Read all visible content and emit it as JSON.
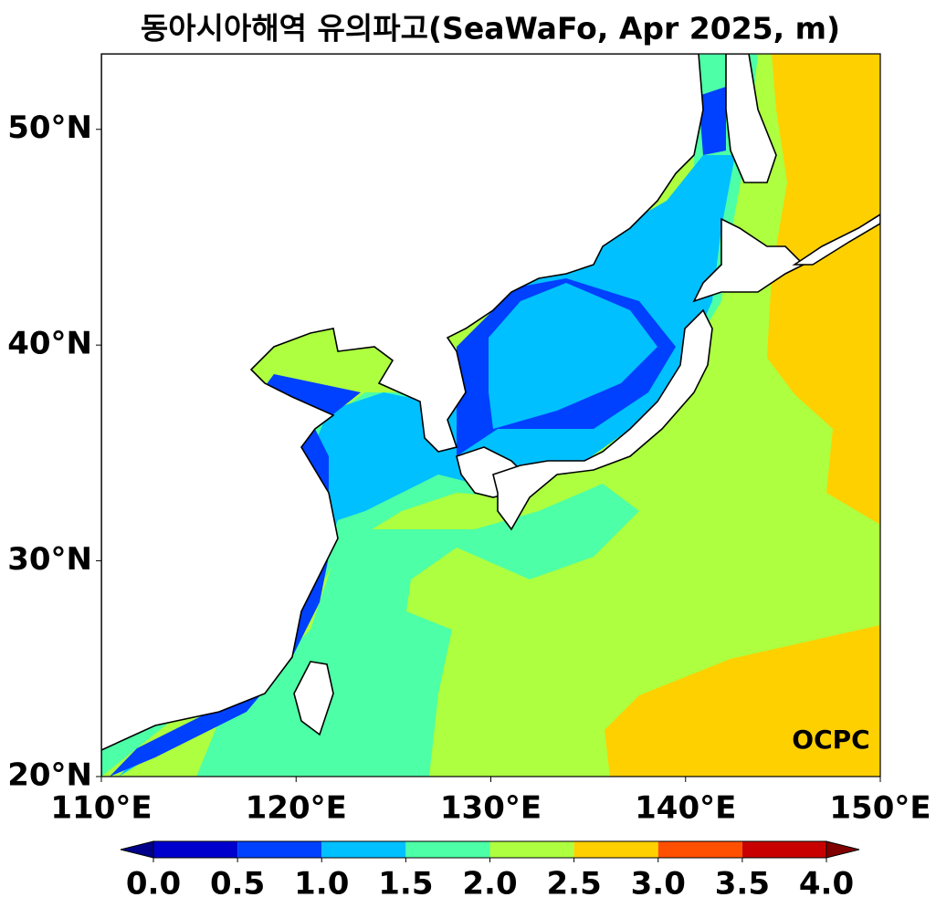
{
  "chart_data": {
    "type": "contour-map",
    "title": "동아시아해역 유의파고(SeaWaFo, Apr 2025, m)",
    "xlim": [
      110,
      150
    ],
    "ylim": [
      20,
      53.5
    ],
    "xticks": [
      {
        "value": 110,
        "label": "110°E"
      },
      {
        "value": 120,
        "label": "120°E"
      },
      {
        "value": 130,
        "label": "130°E"
      },
      {
        "value": 140,
        "label": "140°E"
      },
      {
        "value": 150,
        "label": "150°E"
      }
    ],
    "yticks": [
      {
        "value": 20,
        "label": "20°N"
      },
      {
        "value": 30,
        "label": "30°N"
      },
      {
        "value": 40,
        "label": "40°N"
      },
      {
        "value": 50,
        "label": "50°N"
      }
    ],
    "colorbar": {
      "levels": [
        {
          "value": 0,
          "label": "0.0"
        },
        {
          "value": 0.5,
          "label": "0.5"
        },
        {
          "value": 1,
          "label": "1.0"
        },
        {
          "value": 1.5,
          "label": "1.5"
        },
        {
          "value": 2,
          "label": "2.0"
        },
        {
          "value": 2.5,
          "label": "2.5"
        },
        {
          "value": 3,
          "label": "3.0"
        },
        {
          "value": 3.5,
          "label": "3.5"
        },
        {
          "value": 4,
          "label": "4.0"
        }
      ],
      "colors": [
        "#0000cd",
        "#0040ff",
        "#00c0ff",
        "#4dffa6",
        "#adff40",
        "#ffd000",
        "#ff5000",
        "#c80000"
      ],
      "under_color": "#00008b",
      "over_color": "#800000"
    },
    "logo": "OCPC"
  }
}
